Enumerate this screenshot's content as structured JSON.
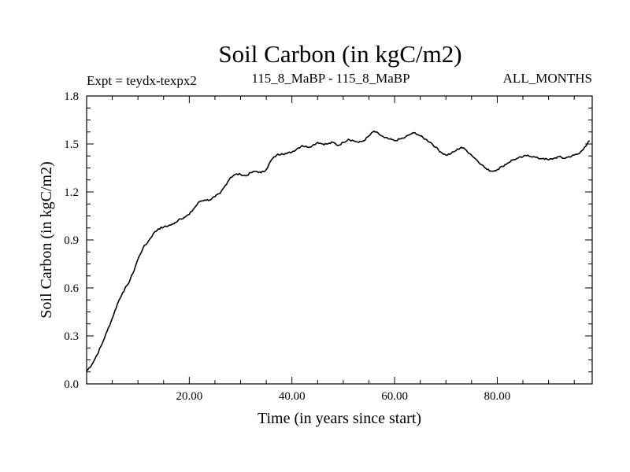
{
  "chart_data": {
    "type": "line",
    "title": "Soil Carbon (in kgC/m2)",
    "subtitle_left": "Expt = teydx-texpx2",
    "subtitle_center": "115_8_MaBP - 115_8_MaBP",
    "subtitle_right": "ALL_MONTHS",
    "xlabel": "Time (in years since start)",
    "ylabel": "Soil Carbon (in kgC/m2)",
    "xlim": [
      0,
      98.5
    ],
    "ylim": [
      0,
      1.8
    ],
    "x_ticks": [
      20,
      40,
      60,
      80
    ],
    "x_tick_labels": [
      "20.00",
      "40.00",
      "60.00",
      "80.00"
    ],
    "y_ticks": [
      0,
      0.3,
      0.6,
      0.9,
      1.2,
      1.5,
      1.8
    ],
    "y_tick_labels": [
      "0.0",
      "0.3",
      "0.6",
      "0.9",
      "1.2",
      "1.5",
      "1.8"
    ],
    "grid": false,
    "series": [
      {
        "name": "Soil Carbon",
        "x": [
          0,
          1,
          2,
          3,
          4,
          5,
          6,
          7,
          8,
          9,
          10,
          11,
          12,
          13,
          14,
          15,
          16,
          17,
          18,
          19,
          20,
          21,
          22,
          23,
          24,
          25,
          26,
          27,
          28,
          29,
          30,
          31,
          32,
          33,
          34,
          35,
          36,
          37,
          38,
          39,
          40,
          41,
          42,
          43,
          44,
          45,
          46,
          47,
          48,
          49,
          50,
          51,
          52,
          53,
          54,
          55,
          56,
          57,
          58,
          59,
          60,
          61,
          62,
          63,
          64,
          65,
          66,
          67,
          68,
          69,
          70,
          71,
          72,
          73,
          74,
          75,
          76,
          77,
          78,
          79,
          80,
          81,
          82,
          83,
          84,
          85,
          86,
          87,
          88,
          89,
          90,
          91,
          92,
          93,
          94,
          95,
          96,
          97,
          98
        ],
        "values": [
          0.08,
          0.12,
          0.18,
          0.25,
          0.33,
          0.41,
          0.5,
          0.57,
          0.62,
          0.69,
          0.78,
          0.85,
          0.89,
          0.94,
          0.97,
          0.98,
          0.99,
          1.0,
          1.03,
          1.04,
          1.06,
          1.1,
          1.14,
          1.15,
          1.15,
          1.17,
          1.19,
          1.24,
          1.29,
          1.31,
          1.31,
          1.3,
          1.32,
          1.33,
          1.32,
          1.34,
          1.4,
          1.43,
          1.44,
          1.44,
          1.45,
          1.47,
          1.49,
          1.48,
          1.49,
          1.51,
          1.5,
          1.5,
          1.51,
          1.49,
          1.51,
          1.53,
          1.52,
          1.51,
          1.52,
          1.55,
          1.58,
          1.56,
          1.54,
          1.53,
          1.52,
          1.53,
          1.54,
          1.56,
          1.57,
          1.55,
          1.53,
          1.51,
          1.48,
          1.45,
          1.43,
          1.44,
          1.46,
          1.48,
          1.46,
          1.43,
          1.4,
          1.37,
          1.34,
          1.33,
          1.34,
          1.36,
          1.38,
          1.4,
          1.41,
          1.42,
          1.43,
          1.42,
          1.41,
          1.41,
          1.4,
          1.41,
          1.42,
          1.41,
          1.42,
          1.43,
          1.44,
          1.48,
          1.52
        ]
      }
    ]
  }
}
